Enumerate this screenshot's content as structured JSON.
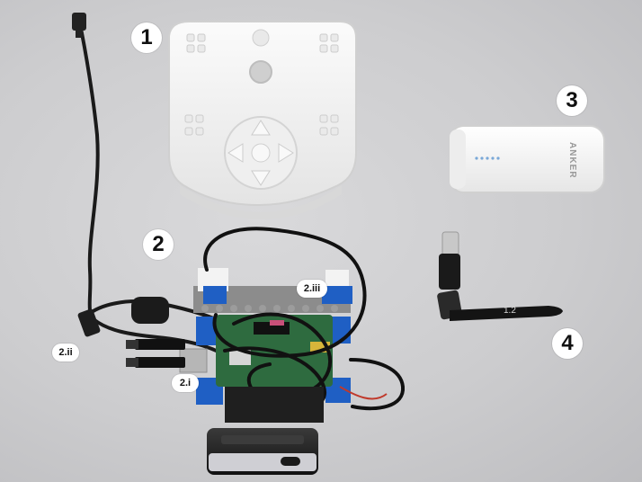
{
  "photo": {
    "labels": {
      "item_1": "1",
      "item_2": "2",
      "item_3": "3",
      "item_4": "4",
      "sub_2_i": "2.i",
      "sub_2_ii": "2.ii",
      "sub_2_iii": "2.iii"
    },
    "printed_text": {
      "powerbank_brand": "ANKER",
      "antenna_marking": "1.2"
    },
    "colors": {
      "background": "#cfcfd1",
      "housing": "#f4f4f4",
      "cable": "#1a1a1a",
      "lego_blue": "#1f5fc4",
      "lego_gray": "#8c8c8c",
      "pcb_green": "#2e6b3f"
    }
  }
}
